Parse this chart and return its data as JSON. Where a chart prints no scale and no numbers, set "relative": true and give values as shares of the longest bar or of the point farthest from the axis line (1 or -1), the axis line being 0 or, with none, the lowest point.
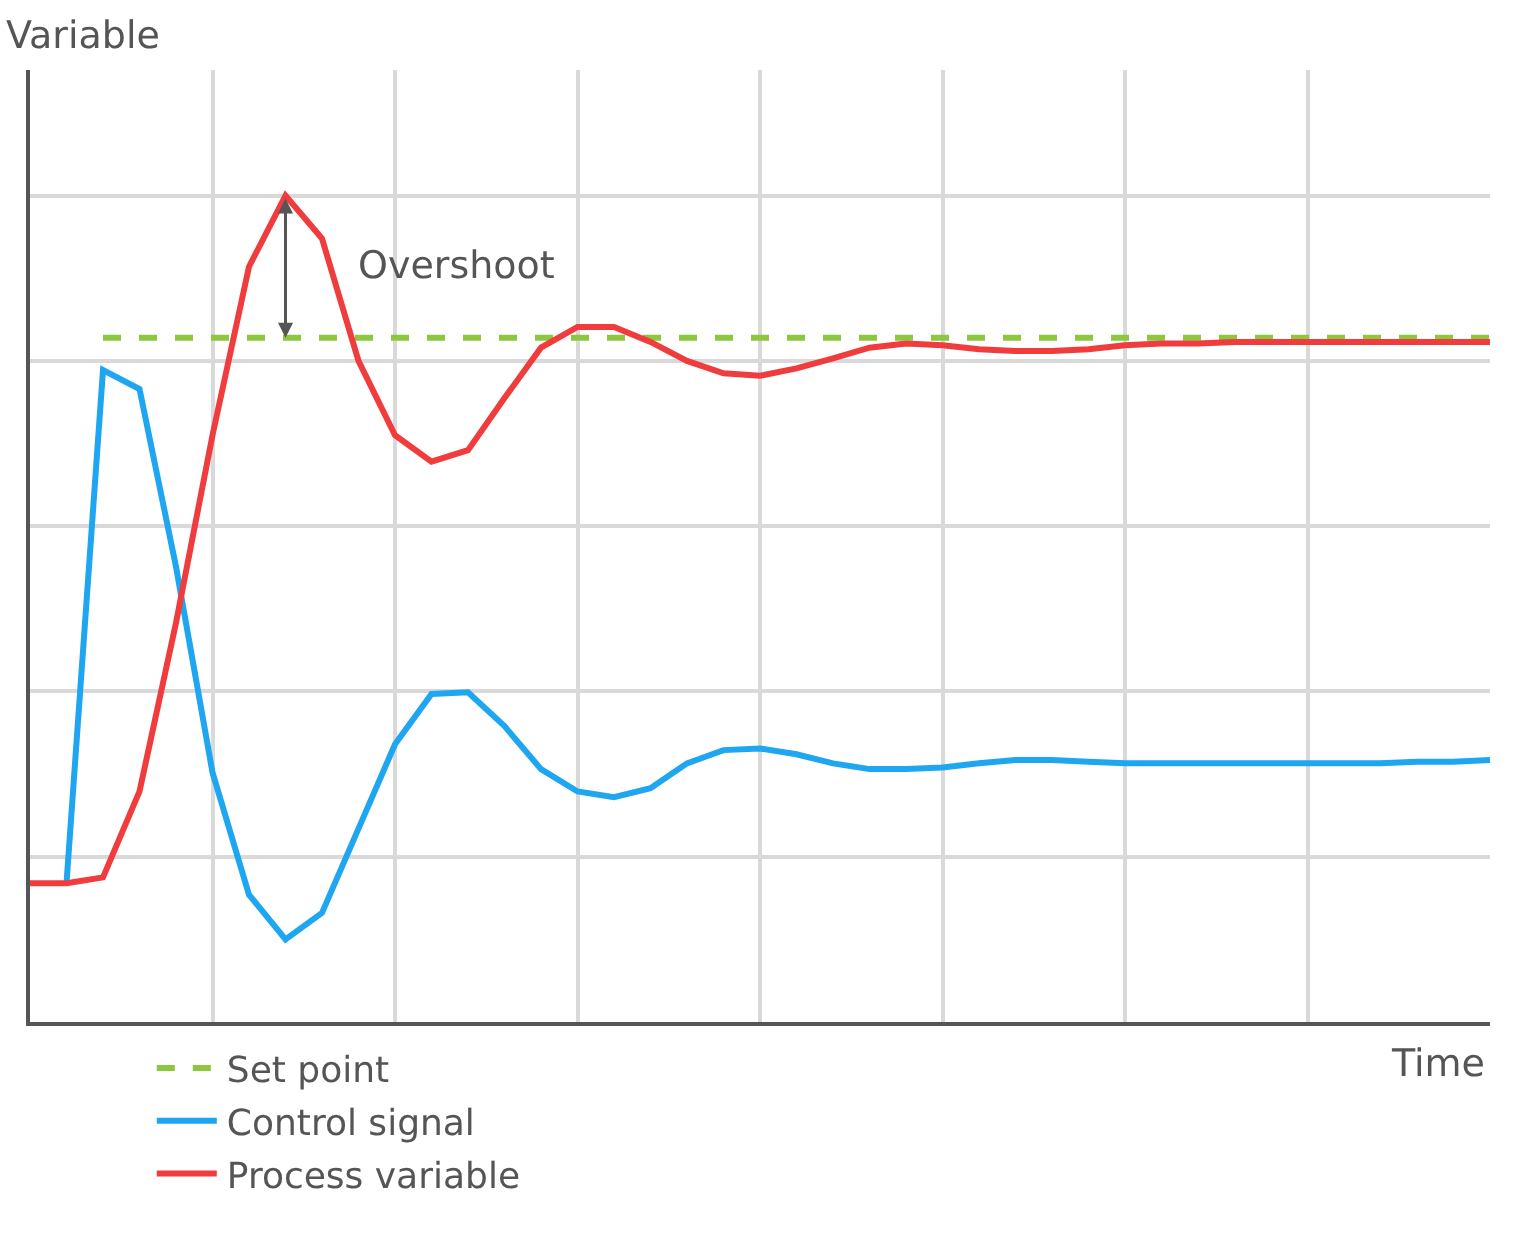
{
  "chart_data": {
    "type": "line",
    "relative": true,
    "xlabel": "Time",
    "ylabel": "Variable",
    "grid": true,
    "legend": "bottom left",
    "tick_labels": false,
    "marker": "none",
    "categories": [
      null,
      null,
      null,
      null,
      null,
      null,
      null,
      null,
      null,
      null,
      null,
      null,
      null,
      null,
      null,
      null,
      null,
      null,
      null,
      null,
      null,
      null,
      null,
      null,
      null,
      null,
      null,
      null,
      null,
      null,
      null,
      null,
      null,
      null,
      null,
      null,
      null,
      null,
      null,
      null,
      null
    ],
    "series": [
      {
        "name": "Set point",
        "color": "#8dc63f",
        "line_style": "dashed",
        "values": [
          null,
          null,
          0.828,
          0.828,
          0.828,
          0.828,
          0.828,
          0.828,
          0.828,
          0.828,
          0.828,
          0.828,
          0.828,
          0.828,
          0.828,
          0.828,
          0.828,
          0.828,
          0.828,
          0.828,
          0.828,
          0.828,
          0.828,
          0.828,
          0.828,
          0.828,
          0.828,
          0.828,
          0.828,
          0.828,
          0.828,
          0.828,
          0.828,
          0.828,
          0.828,
          0.828,
          0.828,
          0.828,
          0.828,
          0.828,
          0.828
        ]
      },
      {
        "name": "Control signal",
        "color": "#1ea7f0",
        "line_style": "solid",
        "values": [
          null,
          0.168,
          0.789,
          0.766,
          0.551,
          0.302,
          0.154,
          0.1,
          0.132,
          0.234,
          0.336,
          0.397,
          0.399,
          0.358,
          0.306,
          0.279,
          0.272,
          0.283,
          0.313,
          0.329,
          0.331,
          0.324,
          0.313,
          0.306,
          0.306,
          0.308,
          0.313,
          0.317,
          0.317,
          0.315,
          0.313,
          0.313,
          0.313,
          0.313,
          0.313,
          0.313,
          0.313,
          0.313,
          0.315,
          0.315,
          0.317
        ]
      },
      {
        "name": "Process variable",
        "color": "#f03c3c",
        "line_style": "solid",
        "values": [
          0.168,
          0.168,
          0.175,
          0.279,
          0.483,
          0.71,
          0.914,
          1.0,
          0.948,
          0.8,
          0.71,
          0.678,
          0.692,
          0.755,
          0.816,
          0.841,
          0.841,
          0.823,
          0.8,
          0.785,
          0.782,
          0.791,
          0.803,
          0.816,
          0.821,
          0.819,
          0.814,
          0.812,
          0.812,
          0.814,
          0.819,
          0.821,
          0.821,
          0.823,
          0.823,
          0.823,
          0.823,
          0.823,
          0.823,
          0.823,
          0.823
        ]
      }
    ],
    "annotations": [
      "Overshoot"
    ]
  }
}
